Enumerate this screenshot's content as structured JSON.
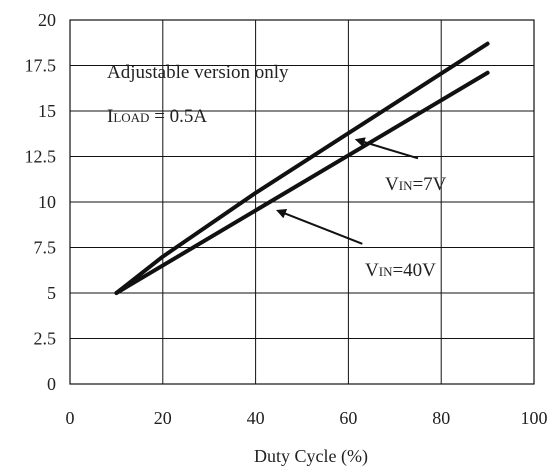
{
  "chart_data": {
    "type": "line",
    "xlabel": "Duty Cycle (%)",
    "ylabel": "",
    "xlim": [
      0,
      100
    ],
    "ylim": [
      0,
      20
    ],
    "x_ticks": [
      0,
      20,
      40,
      60,
      80,
      100
    ],
    "x_tick_labels": [
      "0",
      "20",
      "40",
      "60",
      "80",
      "100"
    ],
    "y_ticks": [
      0,
      2.5,
      5,
      7.5,
      10,
      12.5,
      15,
      17.5,
      20
    ],
    "y_tick_labels": [
      "0",
      "2.5",
      "5",
      "7.5",
      "10",
      "12.5",
      "15",
      "17.5",
      "20"
    ],
    "grid": true,
    "series": [
      {
        "name": "VIN=7V",
        "x": [
          10,
          20,
          40,
          90
        ],
        "y": [
          5.0,
          7.0,
          10.5,
          18.7
        ]
      },
      {
        "name": "VIN=40V",
        "x": [
          10,
          90
        ],
        "y": [
          5.0,
          17.1
        ]
      }
    ],
    "annotations": {
      "note1": "Adjustable version only",
      "load_main": "I",
      "load_sub": "LOAD",
      "load_value": " = 0.5A",
      "vin7_main": "V",
      "vin7_sub": "IN",
      "vin7_value": "=7V",
      "vin40_main": "V",
      "vin40_sub": "IN",
      "vin40_value": "=40V"
    },
    "arrows": [
      {
        "label": "VIN=7V",
        "from": [
          75,
          12.4
        ],
        "to": [
          62,
          13.4
        ]
      },
      {
        "label": "VIN=40V",
        "from": [
          63,
          7.7
        ],
        "to": [
          45,
          9.5
        ]
      }
    ]
  }
}
